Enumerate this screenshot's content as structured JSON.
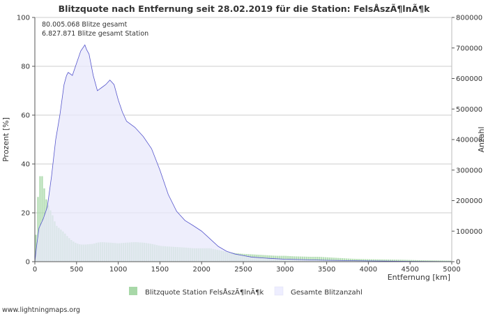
{
  "chart_data": {
    "type": "bar",
    "title": "Blitzquote nach Entfernung seit 28.02.2019 für die Station: FelsÅszÃ¶lnÃ¶k",
    "xlabel": "Entfernung   [km]",
    "ylabel_left": "Prozent   [%]",
    "ylabel_right": "Anzahl",
    "xlim": [
      0,
      5000
    ],
    "ylim_left": [
      0,
      100
    ],
    "ylim_right": [
      0,
      800000
    ],
    "x_ticks": [
      "0",
      "500",
      "1000",
      "1500",
      "2000",
      "2500",
      "3000",
      "3500",
      "4000",
      "4500",
      "5000"
    ],
    "y_left_ticks": [
      "0",
      "20",
      "40",
      "60",
      "80",
      "100"
    ],
    "y_right_ticks": [
      "0",
      "100000",
      "200000",
      "300000",
      "400000",
      "500000",
      "600000",
      "700000",
      "800000"
    ],
    "annotations": [
      "80.005.068 Blitze gesamt",
      "6.827.871 Blitze gesamt Station"
    ],
    "legend": [
      {
        "label": "Blitzquote Station FelsÅszÃ¶lnÃ¶k",
        "color": "#a8d8a8"
      },
      {
        "label": "Gesamte Blitzanzahl",
        "color": "#eeeeff"
      }
    ],
    "bar_width_km": 25,
    "series_bars": {
      "name": "Blitzquote Station FelsÅszÃ¶lnÃ¶k",
      "axis": "left",
      "points": [
        [
          0,
          2
        ],
        [
          25,
          20
        ],
        [
          50,
          33
        ],
        [
          75,
          37
        ],
        [
          100,
          33
        ],
        [
          125,
          27
        ],
        [
          150,
          24
        ],
        [
          175,
          22
        ],
        [
          200,
          20
        ],
        [
          225,
          18
        ],
        [
          250,
          15
        ],
        [
          300,
          13.5
        ],
        [
          350,
          12
        ],
        [
          400,
          10
        ],
        [
          450,
          8.5
        ],
        [
          500,
          7.5
        ],
        [
          550,
          7
        ],
        [
          600,
          7
        ],
        [
          700,
          7.3
        ],
        [
          750,
          7.8
        ],
        [
          800,
          8
        ],
        [
          900,
          7.8
        ],
        [
          1000,
          7.5
        ],
        [
          1100,
          7.8
        ],
        [
          1200,
          8
        ],
        [
          1300,
          7.8
        ],
        [
          1400,
          7.3
        ],
        [
          1500,
          6.5
        ],
        [
          1600,
          6.2
        ],
        [
          1700,
          6
        ],
        [
          1800,
          5.8
        ],
        [
          1900,
          5.5
        ],
        [
          2000,
          5.5
        ],
        [
          2100,
          5.5
        ],
        [
          2200,
          4.8
        ],
        [
          2300,
          4
        ],
        [
          2400,
          3.5
        ],
        [
          2500,
          3.2
        ],
        [
          2600,
          3
        ],
        [
          2700,
          2.8
        ],
        [
          2800,
          2.6
        ],
        [
          2900,
          2.4
        ],
        [
          3000,
          2.4
        ],
        [
          3100,
          2.2
        ],
        [
          3200,
          2.1
        ],
        [
          3300,
          2
        ],
        [
          3400,
          2
        ],
        [
          3500,
          1.8
        ],
        [
          3600,
          1.6
        ],
        [
          3700,
          1.4
        ],
        [
          3800,
          1.2
        ],
        [
          3900,
          1.1
        ],
        [
          4000,
          1
        ],
        [
          4200,
          0.9
        ],
        [
          4400,
          0.8
        ],
        [
          4600,
          0.6
        ],
        [
          4800,
          0.5
        ],
        [
          5000,
          0.4
        ]
      ]
    },
    "series_area": {
      "name": "Gesamte Blitzanzahl",
      "axis": "right",
      "points": [
        [
          0,
          0
        ],
        [
          25,
          60000
        ],
        [
          50,
          110000
        ],
        [
          100,
          140000
        ],
        [
          150,
          180000
        ],
        [
          200,
          280000
        ],
        [
          250,
          400000
        ],
        [
          300,
          480000
        ],
        [
          350,
          580000
        ],
        [
          380,
          610000
        ],
        [
          400,
          620000
        ],
        [
          450,
          610000
        ],
        [
          500,
          650000
        ],
        [
          550,
          690000
        ],
        [
          600,
          710000
        ],
        [
          620,
          695000
        ],
        [
          650,
          680000
        ],
        [
          700,
          610000
        ],
        [
          750,
          560000
        ],
        [
          800,
          570000
        ],
        [
          850,
          580000
        ],
        [
          900,
          595000
        ],
        [
          950,
          580000
        ],
        [
          1000,
          530000
        ],
        [
          1050,
          490000
        ],
        [
          1100,
          460000
        ],
        [
          1200,
          440000
        ],
        [
          1300,
          410000
        ],
        [
          1400,
          370000
        ],
        [
          1500,
          300000
        ],
        [
          1600,
          220000
        ],
        [
          1700,
          165000
        ],
        [
          1800,
          135000
        ],
        [
          1900,
          118000
        ],
        [
          2000,
          100000
        ],
        [
          2100,
          75000
        ],
        [
          2200,
          50000
        ],
        [
          2300,
          34000
        ],
        [
          2400,
          25000
        ],
        [
          2500,
          20000
        ],
        [
          2600,
          15000
        ],
        [
          2800,
          11000
        ],
        [
          3000,
          8000
        ],
        [
          3500,
          4500
        ],
        [
          4000,
          2500
        ],
        [
          4500,
          1200
        ],
        [
          5000,
          500
        ]
      ]
    }
  },
  "watermark": "www.lightningmaps.org"
}
